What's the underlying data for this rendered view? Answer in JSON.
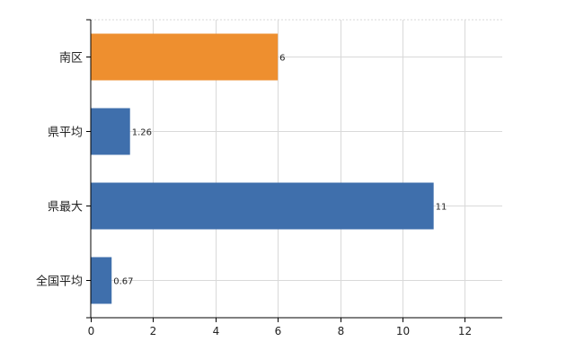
{
  "chart_data": {
    "type": "bar",
    "orientation": "horizontal",
    "categories": [
      "南区",
      "県平均",
      "県最大",
      "全国平均"
    ],
    "values": [
      6,
      1.26,
      11,
      0.67
    ],
    "data_labels": [
      "6",
      "1.26",
      "11",
      "0.67"
    ],
    "bar_colors": [
      "#ee8f2f",
      "#3f6fac",
      "#3f6fac",
      "#3f6fac"
    ],
    "xlim": [
      0,
      13.2
    ],
    "xticks": [
      0,
      2,
      4,
      6,
      8,
      10,
      12
    ],
    "grid": true,
    "title": "",
    "xlabel": "",
    "ylabel": ""
  }
}
